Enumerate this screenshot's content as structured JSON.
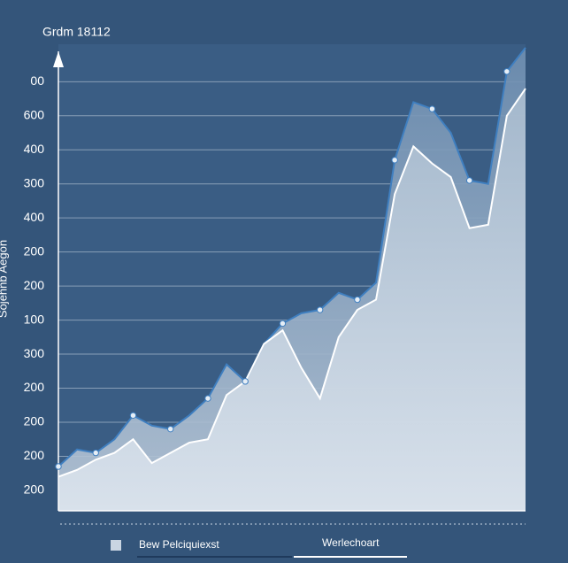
{
  "chart_data": {
    "type": "line",
    "title": "Grdm 18112",
    "y_label": "Sojehnb Aegon",
    "x": [
      0,
      1,
      2,
      3,
      4,
      5,
      6,
      7,
      8,
      9,
      10,
      11,
      12,
      13,
      14,
      15,
      16,
      17,
      18,
      19,
      20,
      21,
      22,
      23,
      24,
      25
    ],
    "xlim": [
      0,
      25
    ],
    "ylim": [
      -0.6,
      13.1
    ],
    "yticks": [
      {
        "value": 0,
        "label": "200"
      },
      {
        "value": 1,
        "label": "200"
      },
      {
        "value": 2,
        "label": "200"
      },
      {
        "value": 3,
        "label": "200"
      },
      {
        "value": 4,
        "label": "300"
      },
      {
        "value": 5,
        "label": "100"
      },
      {
        "value": 6,
        "label": "200"
      },
      {
        "value": 7,
        "label": "200"
      },
      {
        "value": 8,
        "label": "400"
      },
      {
        "value": 9,
        "label": "300"
      },
      {
        "value": 10,
        "label": "400"
      },
      {
        "value": 11,
        "label": "600"
      },
      {
        "value": 12,
        "label": "00"
      }
    ],
    "grid": true,
    "series": [
      {
        "name": "Bew Pelciquiexst",
        "color": "#3f7fc0",
        "values": [
          0.7,
          1.2,
          1.1,
          1.5,
          2.2,
          1.9,
          1.8,
          2.2,
          2.7,
          3.7,
          3.2,
          4.3,
          4.9,
          5.2,
          5.3,
          5.8,
          5.6,
          6.1,
          9.7,
          11.4,
          11.2,
          10.5,
          9.1,
          9.0,
          12.3,
          13.0
        ]
      },
      {
        "name": "Werlechoart",
        "color": "#ffffff",
        "values": [
          0.4,
          0.6,
          0.9,
          1.1,
          1.5,
          0.8,
          1.1,
          1.4,
          1.5,
          2.8,
          3.2,
          4.3,
          4.7,
          3.6,
          2.7,
          4.5,
          5.3,
          5.6,
          8.7,
          10.1,
          9.6,
          9.2,
          7.7,
          7.8,
          11.0,
          11.8
        ]
      }
    ]
  }
}
